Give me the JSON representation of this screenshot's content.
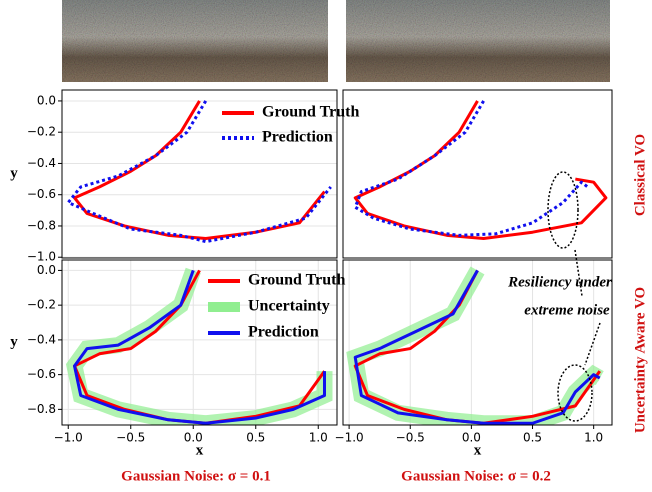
{
  "chart_data": [
    {
      "type": "line",
      "ylabel": "y",
      "xlim": [
        -1.05,
        1.15
      ],
      "ylim": [
        -1.005,
        0.07
      ],
      "yticks": [
        {
          "value": 0,
          "label": "0.0"
        },
        {
          "value": -0.2,
          "label": "−0.2"
        },
        {
          "value": -0.4,
          "label": "−0.4"
        },
        {
          "value": -0.6,
          "label": "−0.6"
        },
        {
          "value": -0.8,
          "label": "−0.8"
        },
        {
          "value": -1.0,
          "label": "−1.0"
        }
      ],
      "grid": true,
      "legend": "upper center",
      "series": [
        {
          "name": "Ground Truth",
          "color": "#ff0000",
          "x": [
            0.05,
            -0.1,
            -0.3,
            -0.5,
            -0.75,
            -0.95,
            -0.85,
            -0.55,
            -0.2,
            0.1,
            0.5,
            0.85,
            1.05
          ],
          "values": [
            0.0,
            -0.2,
            -0.35,
            -0.45,
            -0.55,
            -0.62,
            -0.72,
            -0.8,
            -0.86,
            -0.88,
            -0.84,
            -0.78,
            -0.58
          ]
        },
        {
          "name": "Prediction",
          "color": "#1010ee",
          "dash": true,
          "x": [
            0.1,
            -0.05,
            -0.3,
            -0.6,
            -0.9,
            -1.0,
            -0.8,
            -0.5,
            -0.1,
            0.1,
            0.5,
            0.9,
            1.1
          ],
          "values": [
            0.0,
            -0.2,
            -0.35,
            -0.48,
            -0.55,
            -0.65,
            -0.72,
            -0.82,
            -0.86,
            -0.9,
            -0.84,
            -0.75,
            -0.55
          ]
        }
      ]
    },
    {
      "type": "line",
      "xlim": [
        -1.05,
        1.15
      ],
      "ylim": [
        -1.005,
        0.07
      ],
      "grid": true,
      "series": [
        {
          "color": "#ff0000",
          "x": [
            0.05,
            -0.1,
            -0.3,
            -0.5,
            -0.75,
            -0.95,
            -0.85,
            -0.55,
            -0.2,
            0.1,
            0.5,
            0.9,
            1.1,
            1.0,
            0.85
          ],
          "values": [
            0.0,
            -0.2,
            -0.35,
            -0.45,
            -0.55,
            -0.62,
            -0.72,
            -0.8,
            -0.86,
            -0.88,
            -0.84,
            -0.78,
            -0.62,
            -0.52,
            -0.5
          ]
        },
        {
          "color": "#1010ee",
          "dash": true,
          "x": [
            0.1,
            -0.05,
            -0.3,
            -0.6,
            -0.9,
            -0.95,
            -0.8,
            -0.5,
            -0.1,
            0.2,
            0.5,
            0.75,
            0.9,
            0.95
          ],
          "values": [
            0.0,
            -0.2,
            -0.35,
            -0.5,
            -0.58,
            -0.68,
            -0.75,
            -0.82,
            -0.86,
            -0.85,
            -0.78,
            -0.65,
            -0.52,
            -0.55
          ]
        }
      ]
    },
    {
      "type": "line",
      "xlabel": "x",
      "ylabel": "y",
      "xlim": [
        -1.05,
        1.15
      ],
      "ylim": [
        -0.89,
        0.06
      ],
      "xticks": [
        {
          "value": -1.0,
          "label": "−1.0"
        },
        {
          "value": -0.5,
          "label": "−0.5"
        },
        {
          "value": 0,
          "label": "0.0"
        },
        0.5,
        {
          "value": 1.0,
          "label": "1.0"
        }
      ],
      "yticks": [
        {
          "value": 0,
          "label": "0.0"
        },
        {
          "value": -0.2,
          "label": "−0.2"
        },
        {
          "value": -0.4,
          "label": "−0.4"
        },
        {
          "value": -0.6,
          "label": "−0.6"
        },
        {
          "value": -0.8,
          "label": "−0.8"
        }
      ],
      "grid": true,
      "legend": "upper center",
      "series": [
        {
          "name": "Uncertainty",
          "color": "#90ee90",
          "band": true,
          "x": [
            0.0,
            -0.1,
            -0.35,
            -0.6,
            -0.85,
            -0.95,
            -0.9,
            -0.6,
            -0.2,
            0.1,
            0.5,
            0.8,
            1.05,
            1.05
          ],
          "values": [
            0.0,
            -0.2,
            -0.33,
            -0.43,
            -0.45,
            -0.55,
            -0.72,
            -0.8,
            -0.86,
            -0.88,
            -0.85,
            -0.8,
            -0.72,
            -0.58
          ]
        },
        {
          "name": "Ground Truth",
          "color": "#ff0000",
          "x": [
            0.05,
            -0.1,
            -0.3,
            -0.5,
            -0.75,
            -0.95,
            -0.85,
            -0.55,
            -0.2,
            0.1,
            0.5,
            0.85,
            1.05
          ],
          "values": [
            0.0,
            -0.2,
            -0.35,
            -0.45,
            -0.48,
            -0.55,
            -0.72,
            -0.8,
            -0.86,
            -0.88,
            -0.84,
            -0.78,
            -0.58
          ]
        },
        {
          "name": "Prediction",
          "color": "#1010ee",
          "x": [
            0.0,
            -0.1,
            -0.35,
            -0.6,
            -0.85,
            -0.95,
            -0.9,
            -0.6,
            -0.2,
            0.1,
            0.5,
            0.8,
            1.05,
            1.05
          ],
          "values": [
            0.0,
            -0.2,
            -0.33,
            -0.43,
            -0.45,
            -0.55,
            -0.72,
            -0.8,
            -0.86,
            -0.88,
            -0.85,
            -0.8,
            -0.72,
            -0.58
          ]
        }
      ]
    },
    {
      "type": "line",
      "xlabel": "x",
      "xlim": [
        -1.05,
        1.15
      ],
      "ylim": [
        -0.89,
        0.06
      ],
      "xticks": [
        {
          "value": -1.0,
          "label": "−1.0"
        },
        {
          "value": -0.5,
          "label": "−0.5"
        },
        {
          "value": 0,
          "label": "0.0"
        },
        0.5,
        {
          "value": 1.0,
          "label": "1.0"
        }
      ],
      "grid": true,
      "series": [
        {
          "color": "#90ee90",
          "band": true,
          "x": [
            0.05,
            -0.15,
            -0.45,
            -0.75,
            -0.95,
            -0.9,
            -0.6,
            -0.2,
            0.1,
            0.5,
            0.75,
            0.85,
            1.0,
            1.05
          ],
          "values": [
            0.0,
            -0.25,
            -0.35,
            -0.45,
            -0.5,
            -0.72,
            -0.82,
            -0.86,
            -0.88,
            -0.88,
            -0.82,
            -0.7,
            -0.6,
            -0.62
          ]
        },
        {
          "color": "#ff0000",
          "x": [
            0.05,
            -0.1,
            -0.3,
            -0.5,
            -0.75,
            -0.95,
            -0.85,
            -0.55,
            -0.2,
            0.1,
            0.5,
            0.85,
            1.05
          ],
          "values": [
            0.0,
            -0.2,
            -0.35,
            -0.45,
            -0.48,
            -0.55,
            -0.72,
            -0.8,
            -0.86,
            -0.88,
            -0.84,
            -0.78,
            -0.58
          ]
        },
        {
          "color": "#1010ee",
          "x": [
            0.05,
            -0.15,
            -0.45,
            -0.75,
            -0.95,
            -0.9,
            -0.6,
            -0.2,
            0.1,
            0.5,
            0.75,
            0.85,
            1.0,
            1.05
          ],
          "values": [
            0.0,
            -0.25,
            -0.35,
            -0.45,
            -0.5,
            -0.72,
            -0.82,
            -0.86,
            -0.88,
            -0.88,
            -0.82,
            -0.7,
            -0.6,
            -0.62
          ]
        }
      ]
    }
  ],
  "row_labels": [
    "Classical VO",
    "Uncertainty Aware VO"
  ],
  "captions": [
    "Gaussian Noise: σ = 0.1",
    "Gaussian Noise: σ = 0.2"
  ],
  "annotation": [
    "Resiliency under",
    "extreme noise"
  ]
}
